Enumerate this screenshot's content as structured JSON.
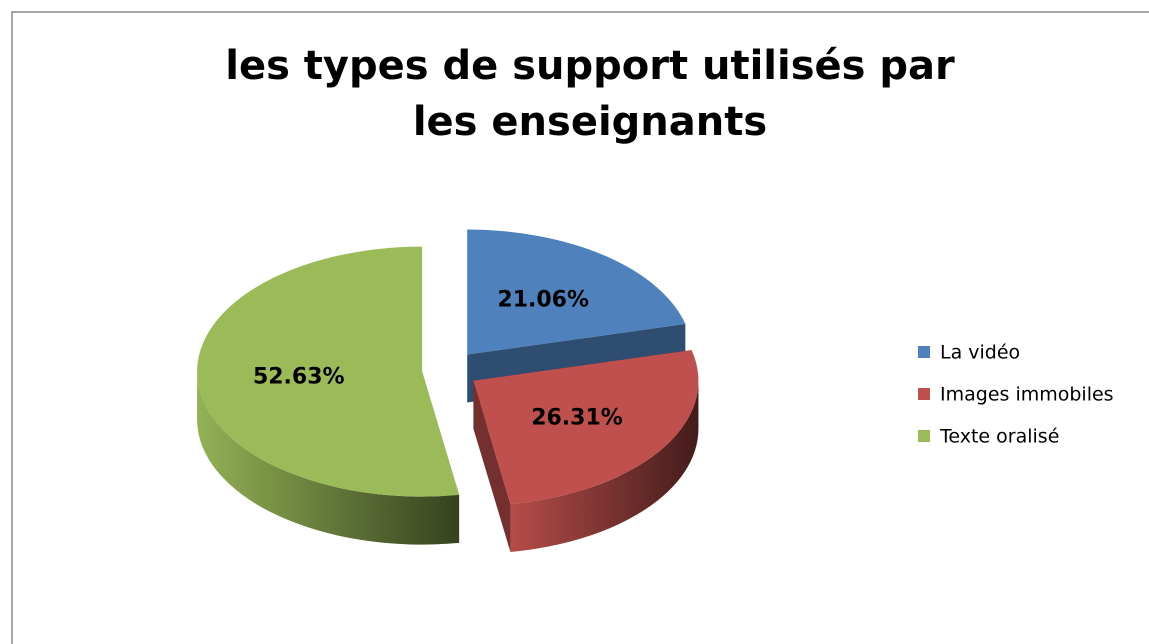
{
  "chart_data": {
    "type": "pie",
    "title": "les types de support utilisés par les enseignants",
    "categories": [
      "La vidéo",
      "Images immobiles",
      "Texte oralisé"
    ],
    "values": [
      21.06,
      26.31,
      52.63
    ],
    "value_labels": [
      "21.06%",
      "26.31%",
      "52.63%"
    ],
    "colors": [
      "#4f81bd",
      "#c0504d",
      "#9bbb59"
    ],
    "legend": "right"
  }
}
